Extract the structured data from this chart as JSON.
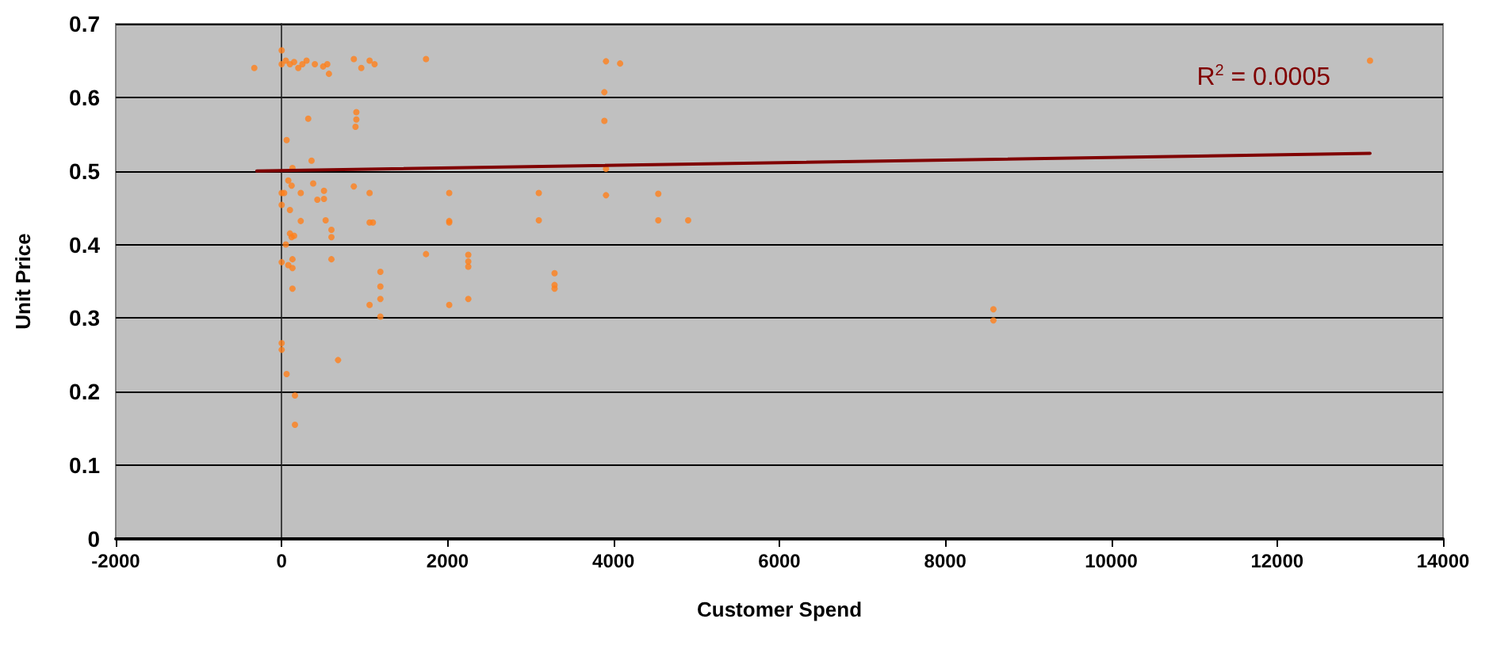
{
  "chart_data": {
    "type": "scatter",
    "xlabel": "Customer Spend",
    "ylabel": "Unit Price",
    "xlim": [
      -2000,
      14000
    ],
    "xticks": [
      -2000,
      0,
      2000,
      4000,
      6000,
      8000,
      10000,
      12000,
      14000
    ],
    "ylim": [
      0,
      0.7
    ],
    "yticks": [
      0,
      0.1,
      0.2,
      0.3,
      0.4,
      0.5,
      0.6,
      0.7
    ],
    "grid": "y",
    "marker": "circle",
    "annotations": [
      "R$^{2}$ = 0.0005"
    ],
    "series": [
      {
        "type": "scatter",
        "color": "#ff7f1a",
        "x": [
          -330,
          0,
          0,
          50,
          100,
          150,
          200,
          250,
          300,
          400,
          500,
          550,
          570,
          870,
          960,
          1060,
          1120,
          1740,
          320,
          900,
          900,
          890,
          60,
          360,
          130,
          0,
          30,
          80,
          120,
          0,
          100,
          230,
          380,
          430,
          510,
          510,
          530,
          230,
          600,
          600,
          600,
          870,
          1060,
          1060,
          1100,
          1190,
          1190,
          1190,
          1190,
          1060,
          1740,
          2020,
          2020,
          2020,
          2020,
          2250,
          2250,
          2250,
          2250,
          3100,
          3100,
          0,
          80,
          130,
          130,
          130,
          50,
          100,
          120,
          150,
          0,
          0,
          60,
          160,
          160,
          680,
          3290,
          3290,
          3290,
          3910,
          4080,
          3890,
          3890,
          3910,
          3910,
          4540,
          4540,
          4900,
          8580,
          8580,
          13120
        ],
        "values": [
          0.64,
          0.664,
          0.645,
          0.65,
          0.645,
          0.648,
          0.64,
          0.645,
          0.65,
          0.645,
          0.642,
          0.645,
          0.632,
          0.652,
          0.64,
          0.65,
          0.645,
          0.652,
          0.571,
          0.57,
          0.58,
          0.56,
          0.542,
          0.514,
          0.504,
          0.47,
          0.47,
          0.487,
          0.48,
          0.454,
          0.447,
          0.47,
          0.483,
          0.461,
          0.462,
          0.473,
          0.433,
          0.432,
          0.42,
          0.41,
          0.38,
          0.479,
          0.47,
          0.43,
          0.43,
          0.363,
          0.343,
          0.326,
          0.302,
          0.318,
          0.387,
          0.47,
          0.432,
          0.43,
          0.318,
          0.386,
          0.377,
          0.37,
          0.326,
          0.47,
          0.433,
          0.376,
          0.372,
          0.38,
          0.368,
          0.34,
          0.4,
          0.415,
          0.41,
          0.412,
          0.266,
          0.257,
          0.224,
          0.195,
          0.155,
          0.243,
          0.361,
          0.345,
          0.34,
          0.649,
          0.646,
          0.607,
          0.568,
          0.503,
          0.467,
          0.469,
          0.433,
          0.433,
          0.312,
          0.297,
          0.65
        ]
      },
      {
        "type": "line",
        "color": "#800000",
        "marker": "none",
        "x": [
          -300,
          13120
        ],
        "values": [
          0.5,
          0.524
        ]
      }
    ]
  }
}
